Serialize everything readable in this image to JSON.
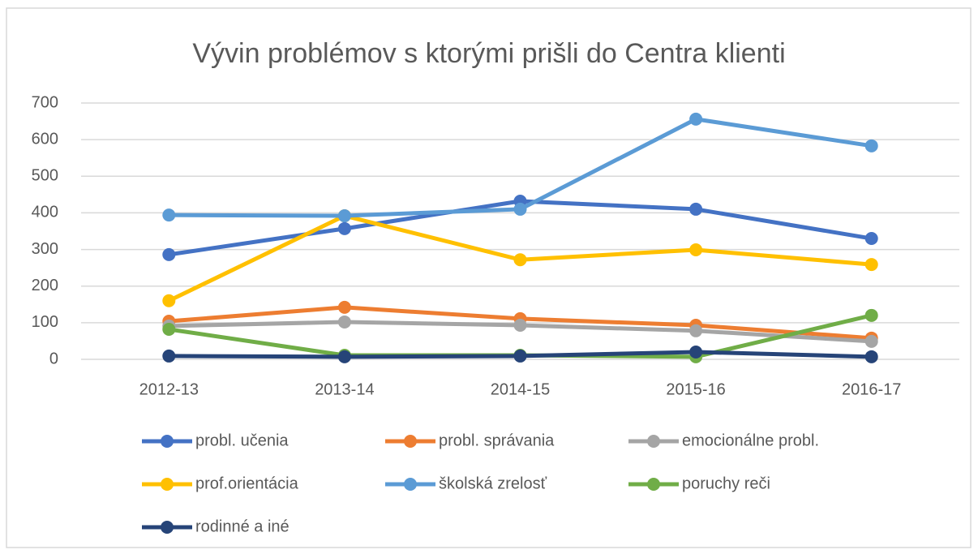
{
  "chart_data": {
    "type": "line",
    "title": "Vývin problémov s ktorými prišli do Centra klienti",
    "categories": [
      "2012-13",
      "2013-14",
      "2014-15",
      "2015-16",
      "2016-17"
    ],
    "series": [
      {
        "name": "probl. učenia",
        "color": "#4472c4",
        "values": [
          286,
          357,
          432,
          410,
          330
        ]
      },
      {
        "name": "probl. správania",
        "color": "#ed7d31",
        "values": [
          104,
          142,
          111,
          93,
          58
        ]
      },
      {
        "name": "emocionálne probl.",
        "color": "#a5a5a5",
        "values": [
          91,
          102,
          93,
          78,
          49
        ]
      },
      {
        "name": "prof.orientácia",
        "color": "#ffc000",
        "values": [
          160,
          392,
          272,
          299,
          259
        ]
      },
      {
        "name": "školská zrelosť",
        "color": "#5b9bd5",
        "values": [
          394,
          392,
          410,
          656,
          583
        ]
      },
      {
        "name": "poruchy reči",
        "color": "#70ad47",
        "values": [
          82,
          11,
          11,
          7,
          120
        ]
      },
      {
        "name": "rodinné a iné",
        "color": "#264478",
        "values": [
          9,
          7,
          9,
          20,
          7
        ]
      }
    ],
    "ylim": [
      0,
      700
    ],
    "yticks": [
      0,
      100,
      200,
      300,
      400,
      500,
      600,
      700
    ],
    "grid": true,
    "legend": "bottom"
  }
}
